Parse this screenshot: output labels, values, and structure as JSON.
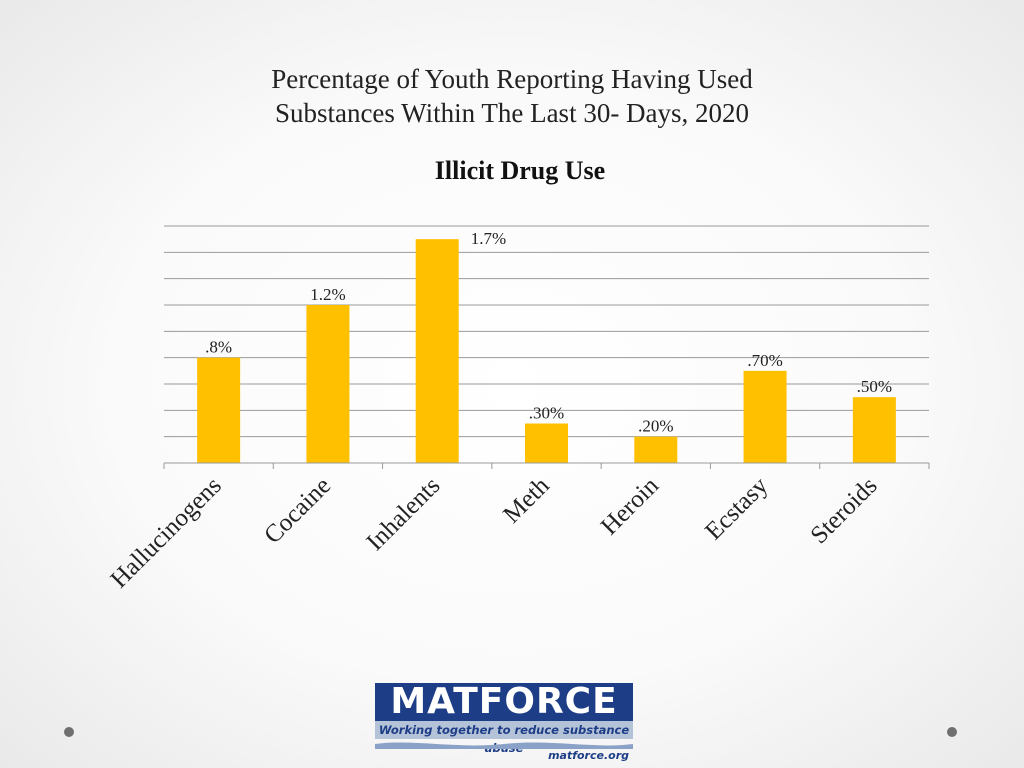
{
  "slide": {
    "title_line1": "Percentage of Youth Reporting Having Used",
    "title_line2": "Substances Within The Last 30- Days, 2020"
  },
  "chart_data": {
    "type": "bar",
    "title": "Illicit Drug Use",
    "categories": [
      "Hallucinogens",
      "Cocaine",
      "Inhalents",
      "Meth",
      "Heroin",
      "Ecstasy",
      "Steroids"
    ],
    "values": [
      0.8,
      1.2,
      1.7,
      0.3,
      0.2,
      0.7,
      0.5
    ],
    "data_labels": [
      ".8%",
      "1.2%",
      "1.7%",
      ".30%",
      ".20%",
      ".70%",
      ".50%"
    ],
    "ylim": [
      0,
      1.8
    ],
    "grid_step": 0.2,
    "grid": true,
    "legend": "none",
    "xlabel": "",
    "ylabel": "",
    "bar_color": "#ffc000"
  },
  "logo": {
    "name": "MATFORCE",
    "tagline": "Working together to reduce substance abuse",
    "url": "matforce.org",
    "primary_color": "#1d3d86"
  }
}
